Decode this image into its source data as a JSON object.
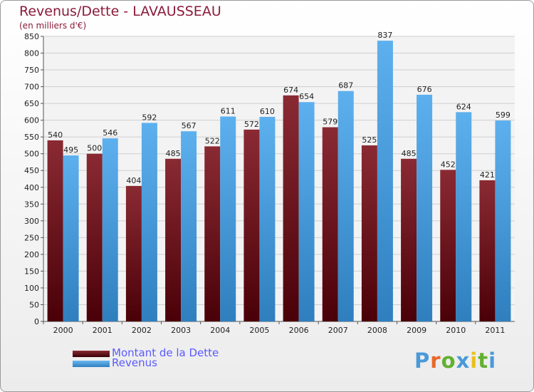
{
  "chart_data": {
    "type": "bar",
    "title": "Revenus/Dette - LAVAUSSEAU",
    "subtitle": "(en milliers d'€)",
    "categories": [
      "2000",
      "2001",
      "2002",
      "2003",
      "2004",
      "2005",
      "2006",
      "2007",
      "2008",
      "2009",
      "2010",
      "2011"
    ],
    "series": [
      {
        "name": "Montant de la Dette",
        "color": "#6b0d14",
        "values": [
          540,
          500,
          404,
          485,
          522,
          572,
          674,
          579,
          525,
          485,
          452,
          421
        ]
      },
      {
        "name": "Revenus",
        "color": "#4da6e8",
        "values": [
          495,
          546,
          592,
          567,
          611,
          610,
          654,
          687,
          837,
          676,
          624,
          599
        ]
      }
    ],
    "ylim": [
      0,
      850
    ],
    "yticks": [
      0,
      50,
      100,
      150,
      200,
      250,
      300,
      350,
      400,
      450,
      500,
      550,
      600,
      650,
      700,
      750,
      800,
      850
    ],
    "grid": true,
    "legend_position": "bottom-left"
  },
  "logo": {
    "text": "Proxiti",
    "letters": [
      "P",
      "r",
      "o",
      "x",
      "i",
      "t",
      "i"
    ],
    "colors": [
      "#4a9ad8",
      "#e8682a",
      "#62b030",
      "#4a9ad8",
      "#e8c020",
      "#62b030",
      "#4a9ad8"
    ]
  }
}
